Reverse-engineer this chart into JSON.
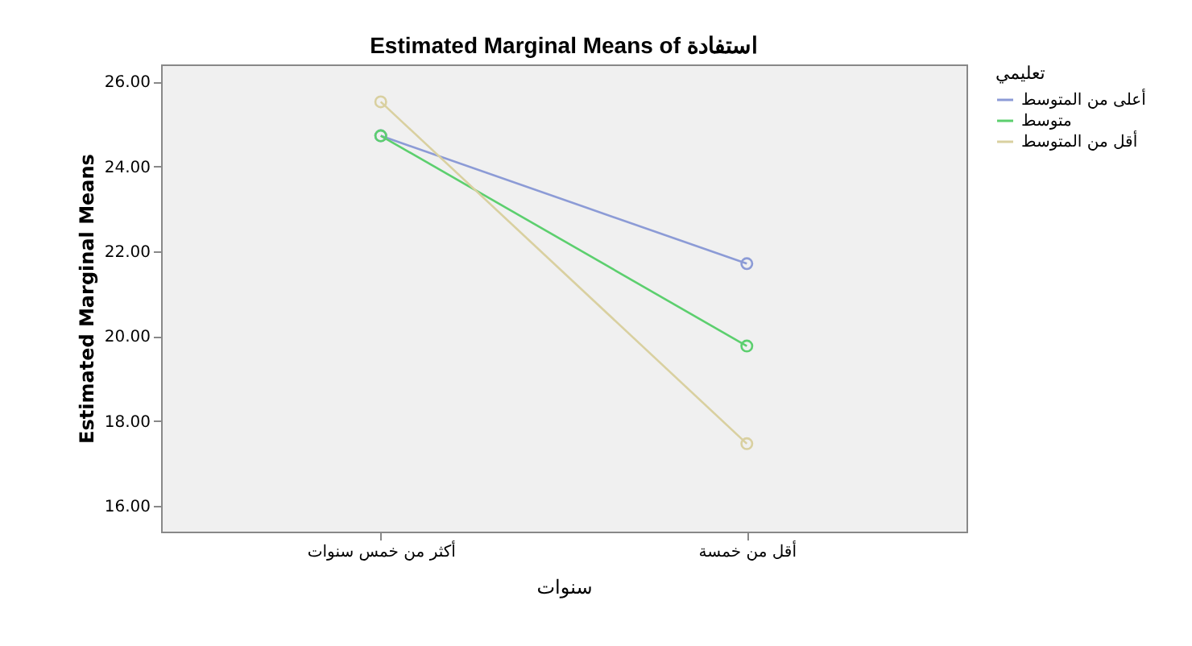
{
  "chart_data": {
    "type": "line",
    "title": "Estimated Marginal Means of استفادة",
    "xlabel": "سنوات",
    "ylabel": "Estimated Marginal Means",
    "legend_title": "تعليمي",
    "categories": [
      "أكثر من خمس سنوات",
      "أقل من خمسة"
    ],
    "series": [
      {
        "name": "أعلى من المتوسط",
        "color": "#8c9bd6",
        "values": [
          24.72,
          21.71
        ]
      },
      {
        "name": "متوسط",
        "color": "#5ccf6e",
        "values": [
          24.72,
          19.77
        ]
      },
      {
        "name": "أقل من المتوسط",
        "color": "#d9d0a0",
        "values": [
          25.52,
          17.47
        ]
      }
    ],
    "ylim": [
      15.4,
      26.4
    ],
    "yticks": [
      {
        "value": 16,
        "label": "16.00"
      },
      {
        "value": 18,
        "label": "18.00"
      },
      {
        "value": 20,
        "label": "20.00"
      },
      {
        "value": 22,
        "label": "22.00"
      },
      {
        "value": 24,
        "label": "24.00"
      },
      {
        "value": 26,
        "label": "26.00"
      }
    ],
    "grid": false,
    "legend": "top right",
    "marker": "circle",
    "line_style": "solid"
  }
}
